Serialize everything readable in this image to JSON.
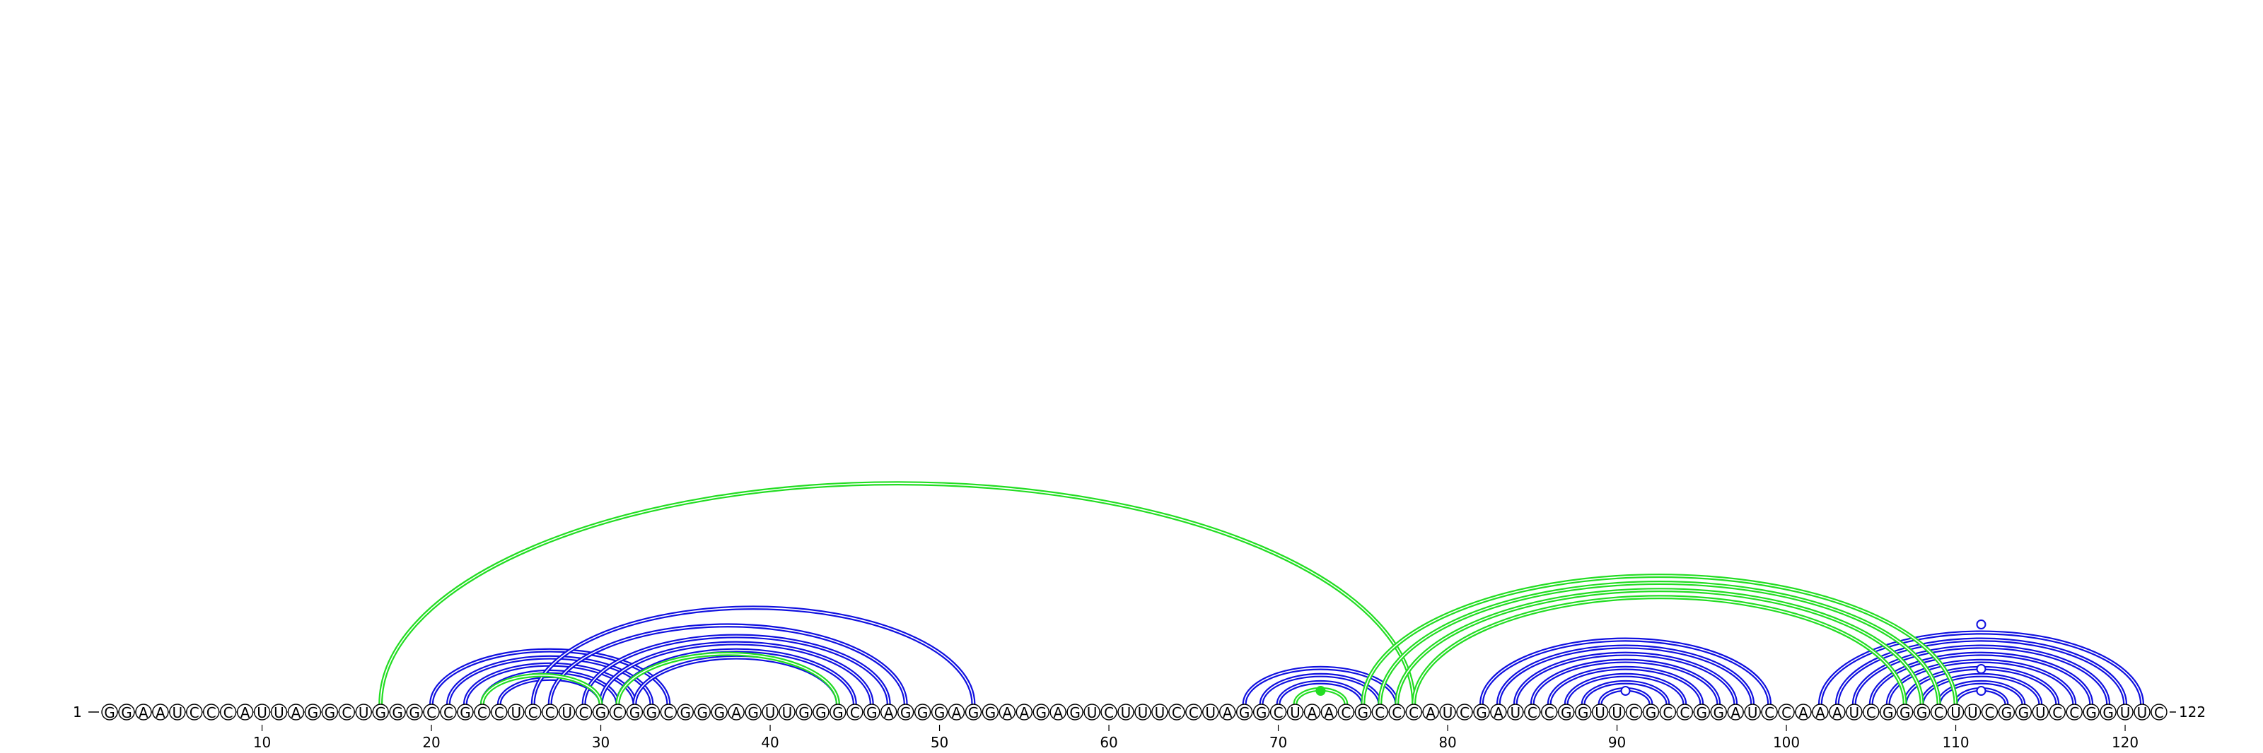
{
  "sequence": "GGAAUCCCAUUAGGCUGGGCCGCCUCCUCGCGGCGGGAGUUGGGCGAGGGAGGAAGAGUCUUUCCUAGGCUAACGCCCAUCGAUCCGGUUCGCCGGAUCCAAAUCGGGCUUCGGUCCGGUUC",
  "start_label": "1",
  "end_label": "122",
  "ticks": [
    10,
    20,
    30,
    40,
    50,
    60,
    70,
    80,
    90,
    100,
    110,
    120
  ],
  "colors": {
    "blue": "#1010e0",
    "green": "#22dd22"
  },
  "chart_data": {
    "type": "arc",
    "length": 122,
    "pairs_blue": [
      [
        20,
        34
      ],
      [
        21,
        33
      ],
      [
        22,
        32
      ],
      [
        23,
        31
      ],
      [
        24,
        30
      ],
      [
        26,
        52
      ],
      [
        27,
        48
      ],
      [
        29,
        47
      ],
      [
        30,
        46
      ],
      [
        31,
        45
      ],
      [
        32,
        44
      ],
      [
        68,
        77
      ],
      [
        69,
        76
      ],
      [
        70,
        75
      ],
      [
        82,
        99
      ],
      [
        83,
        98
      ],
      [
        84,
        97
      ],
      [
        85,
        96
      ],
      [
        86,
        95
      ],
      [
        87,
        94
      ],
      [
        88,
        93
      ],
      [
        89,
        92
      ],
      [
        102,
        121
      ],
      [
        103,
        120
      ],
      [
        104,
        119
      ],
      [
        105,
        118
      ],
      [
        106,
        117
      ],
      [
        107,
        116
      ],
      [
        108,
        115
      ],
      [
        109,
        114
      ],
      [
        110,
        113
      ]
    ],
    "pairs_green": [
      [
        17,
        78
      ],
      [
        23,
        30
      ],
      [
        31,
        44
      ],
      [
        71,
        74
      ],
      [
        75,
        110
      ],
      [
        76,
        109
      ],
      [
        77,
        108
      ],
      [
        78,
        107
      ]
    ]
  }
}
